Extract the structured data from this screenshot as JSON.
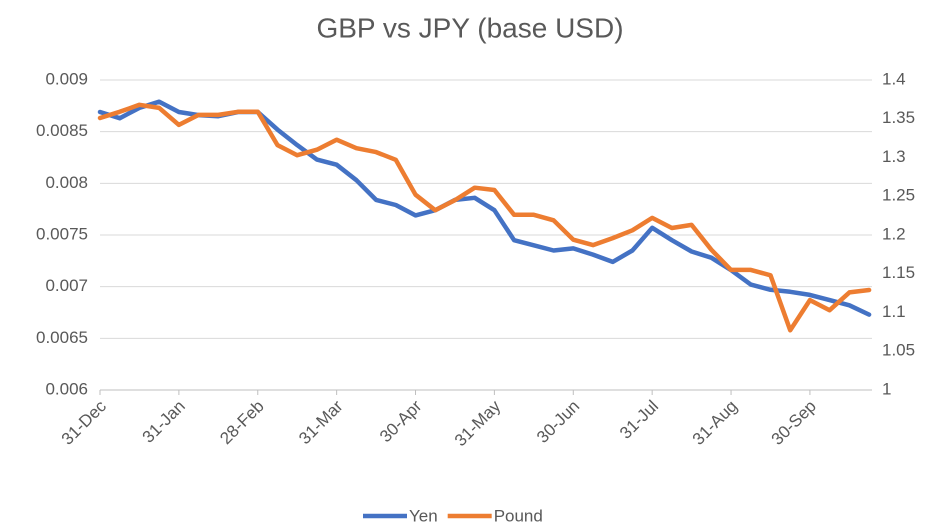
{
  "chart_data": {
    "type": "line",
    "title": "GBP vs JPY (base USD)",
    "categories": [
      "31-Dec",
      null,
      null,
      null,
      "31-Jan",
      null,
      null,
      null,
      "28-Feb",
      null,
      null,
      null,
      "31-Mar",
      null,
      null,
      null,
      "30-Apr",
      null,
      null,
      null,
      "31-May",
      null,
      null,
      null,
      "30-Jun",
      null,
      null,
      null,
      "31-Jul",
      null,
      null,
      null,
      "31-Aug",
      null,
      null,
      null,
      "30-Sep",
      null,
      null,
      null
    ],
    "series": [
      {
        "name": "Yen",
        "color": "#4472c4",
        "axis": "y",
        "values": [
          0.00869,
          0.00863,
          0.00873,
          0.00879,
          0.00869,
          0.00866,
          0.00865,
          0.00869,
          0.00869,
          0.00852,
          0.00837,
          0.00823,
          0.00818,
          0.00803,
          0.00784,
          0.00779,
          0.00769,
          0.00774,
          0.00784,
          0.00786,
          0.00774,
          0.00745,
          0.0074,
          0.00735,
          0.00737,
          0.00731,
          0.00724,
          0.00735,
          0.00757,
          0.00745,
          0.00734,
          0.00728,
          0.00716,
          0.00702,
          0.00697,
          0.00695,
          0.00692,
          0.00687,
          0.00682,
          0.00673
        ]
      },
      {
        "name": "Pound",
        "color": "#ed7d31",
        "axis": "y2",
        "values": [
          1.351,
          1.359,
          1.368,
          1.364,
          1.342,
          1.355,
          1.355,
          1.359,
          1.359,
          1.316,
          1.303,
          1.31,
          1.323,
          1.312,
          1.307,
          1.297,
          1.252,
          1.232,
          1.245,
          1.261,
          1.258,
          1.226,
          1.226,
          1.219,
          1.194,
          1.187,
          1.196,
          1.206,
          1.222,
          1.209,
          1.213,
          1.181,
          1.155,
          1.155,
          1.148,
          1.077,
          1.116,
          1.103,
          1.126,
          1.129
        ]
      }
    ],
    "ylim": [
      0.006,
      0.009
    ],
    "yticks": [
      0.006,
      0.0065,
      0.007,
      0.0075,
      0.008,
      0.0085,
      0.009
    ],
    "y2lim": [
      1,
      1.4
    ],
    "y2ticks": [
      1,
      1.05,
      1.1,
      1.15,
      1.2,
      1.25,
      1.3,
      1.35,
      1.4
    ],
    "grid": true,
    "legend": "bottom"
  }
}
